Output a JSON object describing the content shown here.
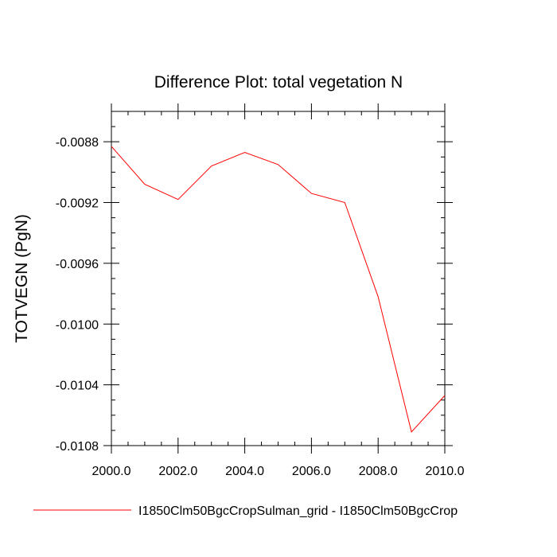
{
  "chart_data": {
    "type": "line",
    "title": "Difference Plot: total vegetation N",
    "xlabel": "",
    "ylabel": "TOTVEGN  (PgN)",
    "xlim": [
      2000,
      2010
    ],
    "ylim": [
      -0.0108,
      -0.0086
    ],
    "x_ticks": [
      2000,
      2002,
      2004,
      2006,
      2008,
      2010
    ],
    "x_tick_labels": [
      "2000.0",
      "2002.0",
      "2004.0",
      "2006.0",
      "2008.0",
      "2010.0"
    ],
    "y_ticks": [
      -0.0088,
      -0.0092,
      -0.0096,
      -0.01,
      -0.0104,
      -0.0108
    ],
    "y_tick_labels": [
      "-0.0088",
      "-0.0092",
      "-0.0096",
      "-0.0100",
      "-0.0104",
      "-0.0108"
    ],
    "grid": false,
    "legend_position": "bottom",
    "series": [
      {
        "name": "I1850Clm50BgcCropSulman_grid - I1850Clm50BgcCrop",
        "color": "#ff0000",
        "x": [
          2000,
          2001,
          2002,
          2003,
          2004,
          2005,
          2006,
          2007,
          2008,
          2009,
          2010
        ],
        "y": [
          -0.00883,
          -0.00908,
          -0.00918,
          -0.00896,
          -0.00887,
          -0.00895,
          -0.00914,
          -0.0092,
          -0.00982,
          -0.01071,
          -0.01047
        ]
      }
    ]
  }
}
